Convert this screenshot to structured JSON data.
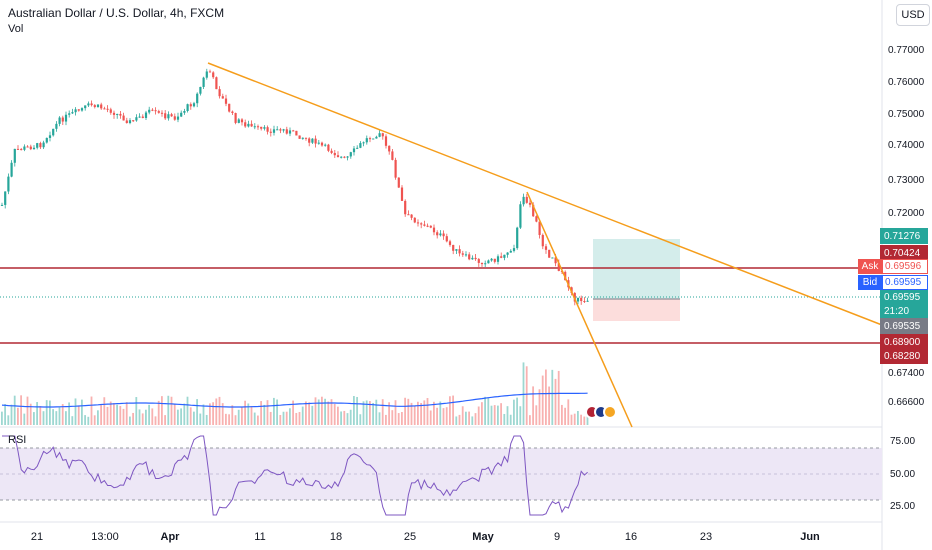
{
  "header": {
    "title": "Australian Dollar / U.S. Dollar, 4h, FXCM",
    "vol_label": "Vol",
    "rsi_label": "RSI",
    "currency": "USD"
  },
  "price_axis": {
    "ticks": [
      "0.77000",
      "0.76000",
      "0.75000",
      "0.74000",
      "0.73000",
      "0.72000",
      "0.67400",
      "0.66600"
    ]
  },
  "price_badges": {
    "tp": "0.71276",
    "entry": "0.70424",
    "ask_label": "Ask",
    "ask_value": "0.69596",
    "bid_label": "Bid",
    "bid_value": "0.69595",
    "last_price": "0.69595",
    "countdown": "21:20",
    "dotted": "0.69535",
    "support": "0.68900",
    "sl": "0.68280"
  },
  "rsi_axis": {
    "ticks": [
      "75.00",
      "50.00",
      "25.00"
    ]
  },
  "date_axis": {
    "ticks": [
      "21",
      "13:00",
      "Apr",
      "11",
      "18",
      "25",
      "May",
      "9",
      "16",
      "23",
      "Jun"
    ]
  },
  "colors": {
    "up": "#26a69a",
    "down": "#ef5350",
    "trend": "#f59d1b",
    "hline": "#b22833",
    "ma": "#2962ff",
    "rsi": "#7e57c2",
    "rsi_band": "#ede7f6"
  },
  "icons": [
    "us-flag-event-icon",
    "au-flag-event-icon",
    "event-icon"
  ]
}
